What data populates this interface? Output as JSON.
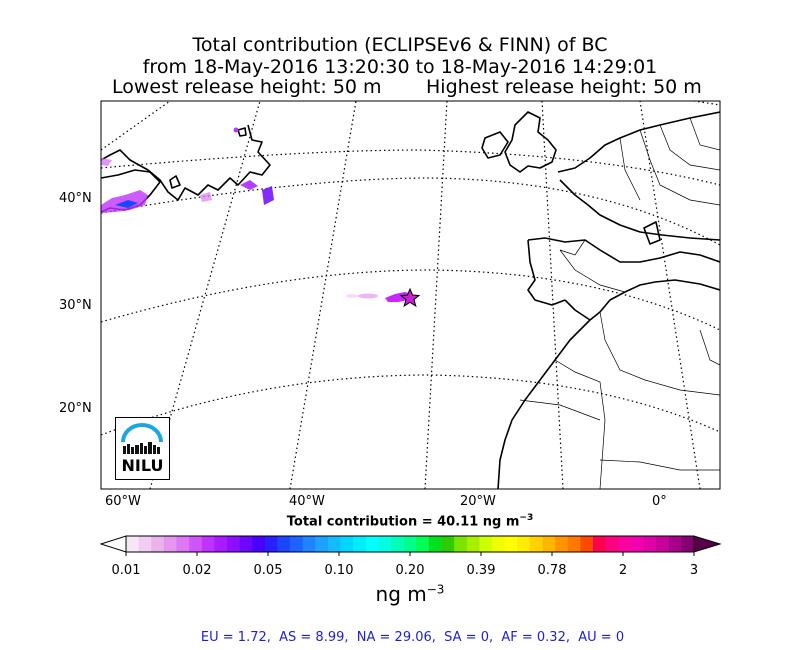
{
  "title": {
    "line1": "Total contribution (ECLIPSEv6 & FINN) of BC",
    "line2": "from 18-May-2016 13:20:30 to 18-May-2016 14:29:01",
    "line3_left": "Lowest release height: 50 m",
    "line3_right": "Highest release height: 50 m"
  },
  "map": {
    "lat_labels": [
      "40°N",
      "30°N",
      "20°N"
    ],
    "lon_labels": [
      "60°W",
      "40°W",
      "20°W",
      "0°"
    ],
    "logo_text": "NILU",
    "release_marker": "star-marker",
    "colors": {
      "coast": "#000000",
      "plume": "#c000ff",
      "plume_dark": "#7a00c8",
      "marker": "#c91fd6"
    }
  },
  "total_label": "Total contribution = 40.11 ng m",
  "total_label_sup": "−3",
  "colorbar": {
    "tick_labels": [
      "0.01",
      "0.02",
      "0.05",
      "0.10",
      "0.20",
      "0.39",
      "0.78",
      "2",
      "3"
    ],
    "unit": "ng m",
    "unit_sup": "−3",
    "colors": [
      "#f8e6f8",
      "#f2cdf2",
      "#ebb3eb",
      "#e496f0",
      "#dd77f5",
      "#d055f8",
      "#c032ff",
      "#a81cff",
      "#8c10ff",
      "#6c08ff",
      "#4a00ff",
      "#2a20ff",
      "#1a46ff",
      "#1a64ff",
      "#1e84ff",
      "#1ea0ff",
      "#14bcff",
      "#00d8ff",
      "#00ecff",
      "#00ffff",
      "#00ffe0",
      "#00ffb8",
      "#00ff8c",
      "#00ff50",
      "#00e020",
      "#2ccc00",
      "#7ce400",
      "#a8f000",
      "#ccff00",
      "#f0ff00",
      "#ffff00",
      "#ffec00",
      "#ffd200",
      "#ffb400",
      "#ff9600",
      "#ff7800",
      "#ff4800",
      "#ff0050",
      "#ff0080",
      "#ff00a0",
      "#f000b0",
      "#e000a8",
      "#c8009c",
      "#a8008a",
      "#860070"
    ]
  },
  "footer": "EU = 1.72,  AS = 8.99,  NA = 29.06,  SA = 0,  AF = 0.32,  AU = 0"
}
